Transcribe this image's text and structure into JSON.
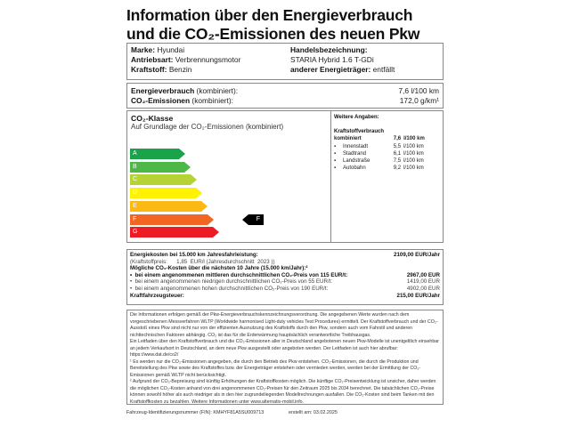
{
  "title": {
    "line1": "Information über den Energieverbrauch",
    "line2": "und die CO₂-Emissionen des neuen Pkw"
  },
  "vehicle": {
    "marke_label": "Marke:",
    "marke": "Hyundai",
    "antrieb_label": "Antriebsart:",
    "antrieb": "Verbrennungsmotor",
    "kraftstoff_label": "Kraftstoff:",
    "kraftstoff": "Benzin",
    "handel_label": "Handelsbezeichnung:",
    "handel": "STARIA Hybrid 1.6 T-GDi",
    "anderer_label": "anderer Energieträger:",
    "anderer": "entfällt"
  },
  "consumption": {
    "energy_label": "Energieverbrauch",
    "energy_suffix": " (kombiniert):",
    "energy_value": "7,6 l/100 km",
    "co2_label": "CO₂-Emissionen",
    "co2_suffix": " (kombiniert):",
    "co2_value": "172,0 g/km¹"
  },
  "co2class": {
    "title": "CO₂-Klasse",
    "subtitle": "Auf Grundlage der CO₂-Emissionen (kombiniert)",
    "classes": [
      {
        "label": "A",
        "color": "#1aa34a"
      },
      {
        "label": "B",
        "color": "#4db848"
      },
      {
        "label": "C",
        "color": "#b5d334"
      },
      {
        "label": "D",
        "color": "#fff200"
      },
      {
        "label": "E",
        "color": "#fdb913"
      },
      {
        "label": "F",
        "color": "#f26522"
      },
      {
        "label": "G",
        "color": "#ed1c24"
      }
    ],
    "current": "F"
  },
  "further": {
    "title": "Weitere Angaben:",
    "fuel_title": "Kraftstoffverbrauch",
    "combined_label": "kombiniert",
    "combined_value": "7,6",
    "unit": "l/100 km",
    "items": [
      {
        "label": "Innenstadt",
        "value": "5,5",
        "unit": "l/100 km"
      },
      {
        "label": "Stadtrand",
        "value": "6,1",
        "unit": "l/100 km"
      },
      {
        "label": "Landstraße",
        "value": "7,5",
        "unit": "l/100 km"
      },
      {
        "label": "Autobahn",
        "value": "9,2",
        "unit": "l/100 km"
      }
    ]
  },
  "costs": {
    "energy_label": "Energiekosten bei 15.000 km Jahresfahrleistung:",
    "energy_value": "2109,00 EUR/Jahr",
    "fuel_price": "(Kraftstoffpreis:      1,85  EUR/l (Jahresdurchschnitt  2023 ))",
    "co2_title": "Mögliche CO₂-Kosten über die nächsten 10 Jahre (15.000 km/Jahr):²",
    "mid_label": "bei einem angenommenen mittleren durchschnittlichen CO₂-Preis von  115  EUR/t:",
    "mid_value": "2967,00 EUR",
    "low_label": "bei einem angenommenen niedrigen durchschnittlichen CO₂-Preis von    55  EUR/t:",
    "low_value": "1419,00 EUR",
    "high_label": "bei einem angenommenen hohen durchschnittlichen CO₂-Preis von  190  EUR/t:",
    "high_value": "4902,00 EUR",
    "tax_label": "Kraftfahrzeugsteuer:",
    "tax_value": "215,00 EUR/Jahr"
  },
  "notes": {
    "p1": "Die Informationen erfolgen gemäß der Pkw-Energieverbrauchskennzeichnungsverordnung. Die angegebenen Werte wurden nach dem vorgeschriebenen Messverfahren WLTP (Worldwide harmonised Light-duty vehicles Test Procedures) ermittelt. Der Kraftstoffverbrauch und der CO₂-Ausstoß eines Pkw sind nicht nur von der effizienten Ausnutzung des Kraftstoffs durch den Pkw, sondern auch vom Fahrstil und anderen nichttechnischen Faktoren abhängig. CO₂ ist das für die Erderwärmung hauptsächlich verantwortliche Treibhausgas.",
    "p2": "Ein Leitfaden über den Kraftstoffverbrauch und die CO₂-Emissionen aller in Deutschland angebotenen neuen Pkw-Modelle ist unentgeltlich einsehbar an jedem Verkaufsort in Deutschland, an dem neue Pkw ausgestellt oder angeboten werden. Der Leitfaden ist auch hier abrufbar:   https://www.dat.de/co2/",
    "f1": "¹ Es werden nur die CO₂-Emissionen angegeben, die durch den Betrieb des Pkw entstehen. CO₂-Emissionen, die durch die Produktion und Bereitstellung des Pkw sowie des Kraftstoffes bzw. der Energieträger entstehen oder vermieden werden, werden bei der Ermittlung der CO₂-Emissionen gemäß WLTP nicht berücksichtigt.",
    "f2": "² Aufgrund der CO₂-Bepreisung sind künftig Erhöhungen der Kraftstoffkosten möglich. Die künftige CO₂-Preisentwicklung ist unsicher, daher werden die möglichen CO₂-Kosten anhand von drei angenommenen CO₂-Preisen für den Zeitraum  2025  bis  2034   berechnet. Die tatsächlichen CO₂-Preise können sowohl höher als auch niedriger als in den hier zugrundeliegenden Modellrechnungen ausfallen. Die CO₂-Kosten sind beim Tanken mit den Kraftstoffkosten zu bezahlen. Weitere Informationen unter www.alternativ-mobil.info."
  },
  "footer": {
    "fin": "Fahrzeug-Identifizierungsnummer (FIN):  KMHYF81A5SU009713",
    "date": "erstellt am:  03.02.2025"
  }
}
